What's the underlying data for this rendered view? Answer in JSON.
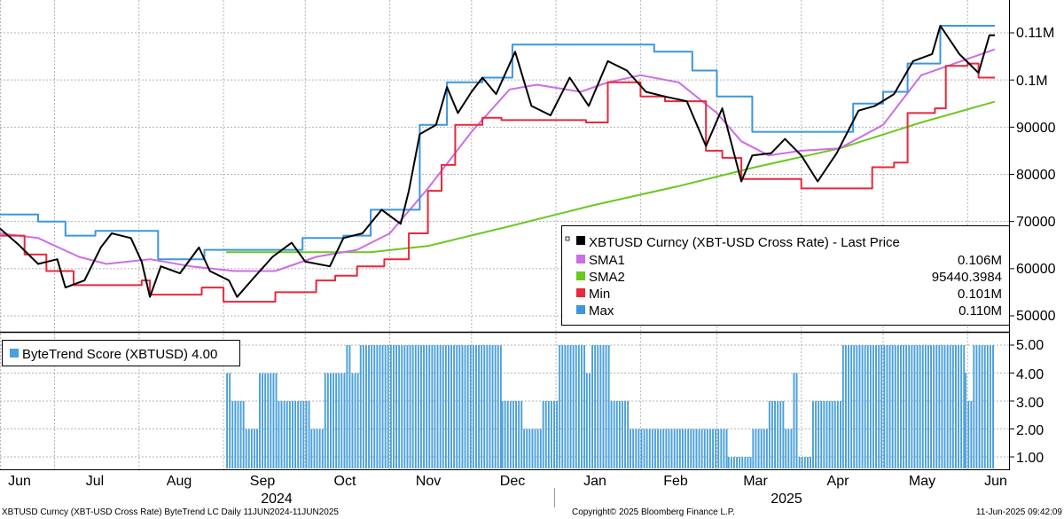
{
  "colors": {
    "price": "#000000",
    "sma1": "#cc6ee6",
    "sma2": "#6ac81e",
    "min": "#e8283c",
    "max": "#3c96dc",
    "score": "#4aa0dc",
    "grid": "#b4b4b4"
  },
  "chart_data": [
    {
      "type": "line",
      "ylabel": "",
      "y_ticks": [
        "0.11M",
        "0.1M",
        "90000",
        "80000",
        "70000",
        "60000",
        "50000"
      ],
      "ylim": [
        48000,
        114000
      ],
      "x_range": [
        "2024-06-11",
        "2025-06-11"
      ],
      "legend": {
        "placement": "bottom-right",
        "header": "XBTUSD Curncy (XBT-USD Cross Rate) - Last Price",
        "entries": [
          {
            "name": "SMA1",
            "value": "0.106M"
          },
          {
            "name": "SMA2",
            "value": "95440.3984"
          },
          {
            "name": "Min",
            "value": "0.101M"
          },
          {
            "name": "Max",
            "value": "0.110M"
          }
        ]
      },
      "series": [
        {
          "name": "Last Price",
          "points": [
            [
              "2024-06-11",
              68500
            ],
            [
              "2024-06-18",
              65000
            ],
            [
              "2024-06-25",
              61000
            ],
            [
              "2024-07-02",
              62000
            ],
            [
              "2024-07-05",
              56000
            ],
            [
              "2024-07-12",
              57500
            ],
            [
              "2024-07-18",
              64500
            ],
            [
              "2024-07-22",
              67500
            ],
            [
              "2024-07-29",
              66500
            ],
            [
              "2024-08-02",
              61500
            ],
            [
              "2024-08-05",
              54000
            ],
            [
              "2024-08-09",
              60500
            ],
            [
              "2024-08-16",
              59000
            ],
            [
              "2024-08-23",
              64500
            ],
            [
              "2024-08-27",
              59500
            ],
            [
              "2024-09-03",
              57500
            ],
            [
              "2024-09-06",
              54000
            ],
            [
              "2024-09-12",
              58000
            ],
            [
              "2024-09-19",
              62500
            ],
            [
              "2024-09-26",
              65500
            ],
            [
              "2024-10-01",
              61500
            ],
            [
              "2024-10-10",
              60500
            ],
            [
              "2024-10-15",
              66500
            ],
            [
              "2024-10-22",
              67500
            ],
            [
              "2024-10-29",
              72500
            ],
            [
              "2024-11-05",
              69500
            ],
            [
              "2024-11-08",
              76500
            ],
            [
              "2024-11-12",
              88500
            ],
            [
              "2024-11-18",
              90500
            ],
            [
              "2024-11-22",
              98500
            ],
            [
              "2024-11-26",
              93000
            ],
            [
              "2024-12-01",
              97500
            ],
            [
              "2024-12-05",
              100500
            ],
            [
              "2024-12-10",
              97000
            ],
            [
              "2024-12-17",
              106000
            ],
            [
              "2024-12-23",
              94500
            ],
            [
              "2024-12-30",
              92500
            ],
            [
              "2025-01-06",
              100500
            ],
            [
              "2025-01-13",
              94500
            ],
            [
              "2025-01-20",
              104000
            ],
            [
              "2025-01-27",
              102000
            ],
            [
              "2025-02-03",
              97500
            ],
            [
              "2025-02-10",
              96500
            ],
            [
              "2025-02-18",
              95500
            ],
            [
              "2025-02-25",
              86000
            ],
            [
              "2025-03-03",
              94000
            ],
            [
              "2025-03-10",
              78500
            ],
            [
              "2025-03-14",
              84000
            ],
            [
              "2025-03-21",
              84500
            ],
            [
              "2025-03-26",
              87500
            ],
            [
              "2025-04-01",
              84000
            ],
            [
              "2025-04-07",
              78500
            ],
            [
              "2025-04-14",
              84500
            ],
            [
              "2025-04-22",
              93500
            ],
            [
              "2025-04-28",
              94500
            ],
            [
              "2025-05-05",
              97000
            ],
            [
              "2025-05-12",
              104000
            ],
            [
              "2025-05-19",
              105500
            ],
            [
              "2025-05-22",
              111500
            ],
            [
              "2025-05-29",
              105500
            ],
            [
              "2025-06-05",
              101500
            ],
            [
              "2025-06-09",
              109500
            ],
            [
              "2025-06-11",
              109500
            ]
          ]
        },
        {
          "name": "SMA1",
          "points": [
            [
              "2024-06-11",
              67500
            ],
            [
              "2024-06-25",
              66500
            ],
            [
              "2024-07-10",
              62500
            ],
            [
              "2024-07-20",
              61000
            ],
            [
              "2024-08-05",
              62000
            ],
            [
              "2024-08-20",
              60500
            ],
            [
              "2024-09-05",
              59500
            ],
            [
              "2024-09-20",
              59500
            ],
            [
              "2024-10-05",
              62500
            ],
            [
              "2024-10-20",
              64000
            ],
            [
              "2024-11-01",
              67500
            ],
            [
              "2024-11-15",
              77000
            ],
            [
              "2024-12-01",
              89000
            ],
            [
              "2024-12-15",
              98000
            ],
            [
              "2024-12-25",
              99000
            ],
            [
              "2025-01-10",
              97500
            ],
            [
              "2025-01-20",
              99500
            ],
            [
              "2025-02-01",
              101000
            ],
            [
              "2025-02-15",
              99500
            ],
            [
              "2025-03-01",
              93000
            ],
            [
              "2025-03-10",
              87000
            ],
            [
              "2025-03-20",
              84000
            ],
            [
              "2025-04-01",
              85000
            ],
            [
              "2025-04-15",
              85500
            ],
            [
              "2025-05-01",
              90500
            ],
            [
              "2025-05-15",
              101000
            ],
            [
              "2025-06-11",
              106500
            ]
          ]
        },
        {
          "name": "SMA2",
          "points": [
            [
              "2024-09-02",
              63500
            ],
            [
              "2024-10-25",
              63500
            ],
            [
              "2024-11-15",
              64800
            ],
            [
              "2024-12-15",
              69000
            ],
            [
              "2025-01-15",
              73500
            ],
            [
              "2025-02-15",
              77500
            ],
            [
              "2025-03-15",
              81500
            ],
            [
              "2025-04-15",
              85500
            ],
            [
              "2025-05-15",
              91000
            ],
            [
              "2025-06-11",
              95400
            ]
          ]
        },
        {
          "name": "Min",
          "points": [
            [
              "2024-06-11",
              67000
            ],
            [
              "2024-06-20",
              63000
            ],
            [
              "2024-06-28",
              59500
            ],
            [
              "2024-07-08",
              56500
            ],
            [
              "2024-08-02",
              57500
            ],
            [
              "2024-08-05",
              54500
            ],
            [
              "2024-08-24",
              56000
            ],
            [
              "2024-09-01",
              53000
            ],
            [
              "2024-09-20",
              55000
            ],
            [
              "2024-10-05",
              57500
            ],
            [
              "2024-10-12",
              58500
            ],
            [
              "2024-10-20",
              60500
            ],
            [
              "2024-10-30",
              62000
            ],
            [
              "2024-11-08",
              67500
            ],
            [
              "2024-11-15",
              76500
            ],
            [
              "2024-11-20",
              82000
            ],
            [
              "2024-11-25",
              90500
            ],
            [
              "2024-12-05",
              92000
            ],
            [
              "2024-12-12",
              91500
            ],
            [
              "2025-01-05",
              91500
            ],
            [
              "2025-01-12",
              91000
            ],
            [
              "2025-01-20",
              99500
            ],
            [
              "2025-02-01",
              96500
            ],
            [
              "2025-02-10",
              95500
            ],
            [
              "2025-02-25",
              85000
            ],
            [
              "2025-03-03",
              83500
            ],
            [
              "2025-03-10",
              79000
            ],
            [
              "2025-04-01",
              77000
            ],
            [
              "2025-04-22",
              77000
            ],
            [
              "2025-04-27",
              81500
            ],
            [
              "2025-05-05",
              82500
            ],
            [
              "2025-05-10",
              93000
            ],
            [
              "2025-05-20",
              94000
            ],
            [
              "2025-05-24",
              103000
            ],
            [
              "2025-06-01",
              103500
            ],
            [
              "2025-06-05",
              100500
            ],
            [
              "2025-06-11",
              100500
            ]
          ]
        },
        {
          "name": "Max",
          "points": [
            [
              "2024-06-11",
              71500
            ],
            [
              "2024-06-25",
              70000
            ],
            [
              "2024-07-05",
              67000
            ],
            [
              "2024-07-16",
              68000
            ],
            [
              "2024-07-31",
              68000
            ],
            [
              "2024-08-08",
              62000
            ],
            [
              "2024-08-25",
              64000
            ],
            [
              "2024-09-02",
              64000
            ],
            [
              "2024-09-10",
              64000
            ],
            [
              "2024-09-30",
              66500
            ],
            [
              "2024-10-15",
              67000
            ],
            [
              "2024-10-25",
              72500
            ],
            [
              "2024-11-12",
              90500
            ],
            [
              "2024-11-22",
              99500
            ],
            [
              "2024-12-05",
              100500
            ],
            [
              "2024-12-16",
              107500
            ],
            [
              "2025-01-20",
              107500
            ],
            [
              "2025-02-06",
              106000
            ],
            [
              "2025-02-20",
              102000
            ],
            [
              "2025-03-01",
              96500
            ],
            [
              "2025-03-14",
              89000
            ],
            [
              "2025-04-01",
              89000
            ],
            [
              "2025-04-15",
              89000
            ],
            [
              "2025-04-20",
              95000
            ],
            [
              "2025-05-01",
              97500
            ],
            [
              "2025-05-10",
              103500
            ],
            [
              "2025-05-22",
              111500
            ],
            [
              "2025-06-11",
              111500
            ]
          ]
        }
      ]
    },
    {
      "type": "bar",
      "title": "ByteTrend Score (XBTUSD) 4.00",
      "y_ticks": [
        "5.00",
        "4.00",
        "3.00",
        "2.00",
        "1.00"
      ],
      "ylim": [
        0.5,
        5.2
      ],
      "segments": [
        [
          "2024-09-02",
          4
        ],
        [
          "2024-09-04",
          3
        ],
        [
          "2024-09-09",
          2
        ],
        [
          "2024-09-14",
          4
        ],
        [
          "2024-09-21",
          3
        ],
        [
          "2024-10-03",
          2
        ],
        [
          "2024-10-08",
          4
        ],
        [
          "2024-10-16",
          5
        ],
        [
          "2024-10-18",
          4
        ],
        [
          "2024-10-21",
          5
        ],
        [
          "2024-12-12",
          3
        ],
        [
          "2024-12-20",
          2
        ],
        [
          "2024-12-27",
          3
        ],
        [
          "2025-01-02",
          5
        ],
        [
          "2025-01-12",
          4
        ],
        [
          "2025-01-14",
          5
        ],
        [
          "2025-01-21",
          3
        ],
        [
          "2025-01-28",
          2
        ],
        [
          "2025-03-05",
          1
        ],
        [
          "2025-03-14",
          2
        ],
        [
          "2025-03-20",
          3
        ],
        [
          "2025-03-26",
          2
        ],
        [
          "2025-03-29",
          4
        ],
        [
          "2025-03-31",
          1
        ],
        [
          "2025-04-05",
          3
        ],
        [
          "2025-04-16",
          5
        ],
        [
          "2025-05-31",
          4
        ],
        [
          "2025-06-01",
          3
        ],
        [
          "2025-06-03",
          5
        ],
        [
          "2025-06-11",
          4
        ]
      ]
    }
  ],
  "x_axis": {
    "months": [
      "Jun",
      "Jul",
      "Aug",
      "Sep",
      "Oct",
      "Nov",
      "Dec",
      "Jan",
      "Feb",
      "Mar",
      "Apr",
      "May",
      "Jun"
    ],
    "years": [
      "2024",
      "2025"
    ]
  },
  "footer": {
    "left": "XBTUSD Curncy (XBT-USD Cross Rate) ByteTrend LC  Daily 11JUN2024-11JUN2025",
    "center": "Copyright© 2025 Bloomberg Finance L.P.",
    "right": "11-Jun-2025 09:42:09"
  }
}
